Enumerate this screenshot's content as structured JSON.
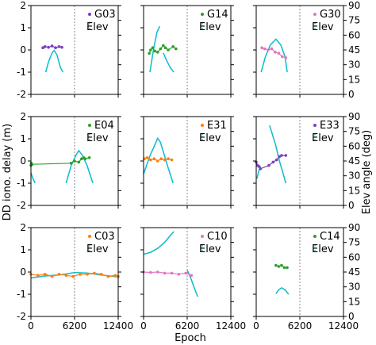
{
  "chart_data": {
    "type": "line",
    "xlabel": "Epoch",
    "ylabel_left": "DD iono. delay (m)",
    "ylabel_right": "Elev angle (deg)",
    "xlim": [
      0,
      12400
    ],
    "ylim_left": [
      -2,
      2
    ],
    "ylim_right": [
      0,
      90
    ],
    "xticks": [
      0,
      6200,
      12400
    ],
    "yticks_left": [
      -2,
      -1,
      0,
      1,
      2
    ],
    "yticks_right": [
      0,
      15,
      30,
      45,
      60,
      75,
      90
    ],
    "vline_x": 6200,
    "elev_color": "#17becf",
    "elev_label": "Elev",
    "panels": [
      {
        "sat": "G03",
        "color": "#7b3fbf",
        "delay": [
          [
            1700,
            0.1
          ],
          [
            2000,
            0.15
          ],
          [
            2500,
            0.12
          ],
          [
            3000,
            0.18
          ],
          [
            3500,
            0.1
          ],
          [
            4000,
            0.15
          ],
          [
            4400,
            0.12
          ]
        ],
        "elev": [
          [
            2100,
            22.5
          ],
          [
            2500,
            33
          ],
          [
            3000,
            42
          ],
          [
            3300,
            44.5
          ],
          [
            3700,
            40
          ],
          [
            4200,
            27
          ],
          [
            4550,
            22.5
          ]
        ]
      },
      {
        "sat": "G14",
        "color": "#2ca02c",
        "delay": [
          [
            800,
            -0.15
          ],
          [
            1000,
            0.0
          ],
          [
            1300,
            0.1
          ],
          [
            1600,
            -0.05
          ],
          [
            2000,
            -0.1
          ],
          [
            2400,
            0.05
          ],
          [
            2800,
            0.2
          ],
          [
            3100,
            0.1
          ],
          [
            3500,
            0.0
          ],
          [
            4200,
            0.15
          ],
          [
            4600,
            0.05
          ]
        ],
        "elev": [
          [
            900,
            22.5
          ],
          [
            1400,
            45
          ],
          [
            1900,
            63
          ],
          [
            2300,
            69
          ]
        ],
        "elev2": [
          [
            2800,
            42
          ],
          [
            3300,
            34
          ],
          [
            3800,
            27
          ],
          [
            4300,
            22.5
          ]
        ]
      },
      {
        "sat": "G30",
        "color": "#e377c2",
        "delay": [
          [
            800,
            0.1
          ],
          [
            1200,
            0.05
          ],
          [
            1700,
            0.0
          ],
          [
            2200,
            0.05
          ],
          [
            2700,
            -0.1
          ],
          [
            3200,
            -0.15
          ],
          [
            3700,
            -0.3
          ],
          [
            4200,
            -0.35
          ]
        ],
        "elev": [
          [
            700,
            22.5
          ],
          [
            1300,
            38
          ],
          [
            2000,
            50
          ],
          [
            2800,
            56
          ],
          [
            3500,
            50
          ],
          [
            4100,
            38
          ],
          [
            4400,
            22.5
          ]
        ]
      },
      {
        "sat": "E04",
        "color": "#2ca02c",
        "delay": [
          [
            0,
            -0.2
          ],
          [
            50,
            -0.1
          ],
          [
            150,
            -0.15
          ],
          [
            5700,
            -0.1
          ],
          [
            6200,
            0.0
          ],
          [
            6800,
            -0.05
          ],
          [
            7200,
            0.1
          ],
          [
            7500,
            0.15
          ],
          [
            7700,
            0.1
          ],
          [
            8300,
            0.15
          ]
        ],
        "elev": [
          [
            5000,
            22.5
          ],
          [
            5700,
            40
          ],
          [
            6400,
            51
          ],
          [
            6800,
            55.5
          ],
          [
            7300,
            51
          ],
          [
            8000,
            40
          ],
          [
            8800,
            22.5
          ]
        ],
        "elev0": [
          [
            0,
            33
          ],
          [
            300,
            27
          ],
          [
            600,
            22.5
          ]
        ]
      },
      {
        "sat": "E31",
        "color": "#ff7f0e",
        "delay": [
          [
            100,
            0.1
          ],
          [
            500,
            0.15
          ],
          [
            1000,
            0.05
          ],
          [
            1500,
            0.1
          ],
          [
            2000,
            0.0
          ],
          [
            2500,
            0.1
          ],
          [
            3000,
            0.05
          ],
          [
            3500,
            0.1
          ],
          [
            4000,
            0.05
          ]
        ],
        "elev": [
          [
            0,
            32
          ],
          [
            500,
            42
          ],
          [
            1000,
            52
          ],
          [
            1400,
            58
          ],
          [
            2000,
            68
          ],
          [
            2400,
            64
          ],
          [
            2900,
            52
          ],
          [
            3500,
            38
          ],
          [
            4200,
            22.5
          ]
        ]
      },
      {
        "sat": "E33",
        "color": "#7b3fbf",
        "delay": [
          [
            0,
            -0.05
          ],
          [
            200,
            -0.2
          ],
          [
            400,
            -0.25
          ],
          [
            600,
            -0.35
          ],
          [
            1800,
            -0.2
          ],
          [
            2400,
            -0.05
          ],
          [
            2900,
            0.05
          ],
          [
            3300,
            0.2
          ],
          [
            3600,
            0.25
          ],
          [
            4200,
            0.25
          ]
        ],
        "elev": [
          [
            100,
            27
          ],
          [
            300,
            33
          ],
          [
            500,
            38
          ],
          [
            600,
            40
          ]
        ],
        "elev2": [
          [
            1900,
            81
          ],
          [
            2300,
            72
          ],
          [
            2800,
            60
          ],
          [
            3300,
            45
          ],
          [
            3800,
            33
          ],
          [
            4200,
            22.5
          ]
        ]
      },
      {
        "sat": "C03",
        "color": "#ff7f0e",
        "delay": [
          [
            0,
            -0.1
          ],
          [
            1000,
            -0.15
          ],
          [
            2000,
            -0.1
          ],
          [
            3000,
            -0.2
          ],
          [
            4000,
            -0.1
          ],
          [
            5000,
            -0.15
          ],
          [
            6000,
            -0.2
          ],
          [
            7000,
            -0.1
          ],
          [
            8000,
            -0.1
          ],
          [
            9000,
            -0.05
          ],
          [
            10000,
            -0.1
          ],
          [
            11000,
            -0.2
          ],
          [
            12000,
            -0.15
          ],
          [
            12400,
            -0.2
          ]
        ],
        "elev": [
          [
            0,
            39
          ],
          [
            2000,
            41
          ],
          [
            4000,
            42
          ],
          [
            6200,
            44.5
          ],
          [
            8000,
            44
          ],
          [
            10000,
            42
          ],
          [
            12400,
            40
          ]
        ]
      },
      {
        "sat": "C10",
        "color": "#e377c2",
        "delay": [
          [
            0,
            0.0
          ],
          [
            1000,
            -0.02
          ],
          [
            2000,
            0.0
          ],
          [
            3000,
            -0.05
          ],
          [
            4000,
            -0.05
          ],
          [
            5000,
            -0.1
          ],
          [
            6000,
            -0.05
          ],
          [
            6800,
            -0.15
          ]
        ],
        "elev": [
          [
            0,
            63
          ],
          [
            1000,
            65
          ],
          [
            2000,
            69
          ],
          [
            3000,
            75
          ],
          [
            3800,
            82
          ],
          [
            4300,
            86
          ]
        ],
        "elev2": [
          [
            6200,
            47
          ],
          [
            6700,
            39
          ],
          [
            7200,
            29
          ],
          [
            7700,
            20
          ]
        ]
      },
      {
        "sat": "C14",
        "color": "#2ca02c",
        "delay": [
          [
            2800,
            0.3
          ],
          [
            3200,
            0.25
          ],
          [
            3600,
            0.3
          ],
          [
            4000,
            0.2
          ],
          [
            4400,
            0.2
          ]
        ],
        "elev": [
          [
            2800,
            23
          ],
          [
            3200,
            27
          ],
          [
            3600,
            29
          ],
          [
            4100,
            27
          ],
          [
            4600,
            22.5
          ]
        ]
      }
    ]
  }
}
